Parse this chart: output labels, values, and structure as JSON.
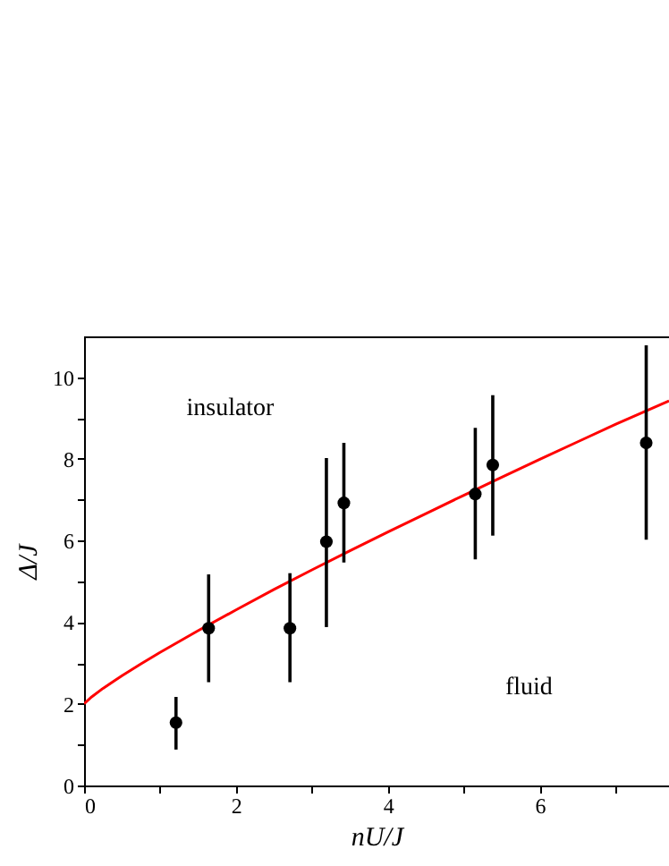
{
  "chart_data": {
    "type": "scatter",
    "xlabel": "nU/J",
    "ylabel": "Δ/J",
    "xlim": [
      0,
      7.7
    ],
    "ylim": [
      0,
      11
    ],
    "xticks": [
      0,
      {
        "value": 1,
        "label": null
      },
      2,
      {
        "value": 3,
        "label": null
      },
      4,
      {
        "value": 5,
        "label": null
      },
      6,
      {
        "value": 7,
        "label": null
      }
    ],
    "yticks": [
      0,
      {
        "value": 1,
        "label": null
      },
      2,
      {
        "value": 3,
        "label": null
      },
      4,
      {
        "value": 5,
        "label": null
      },
      6,
      {
        "value": 7,
        "label": null
      },
      8,
      {
        "value": 9,
        "label": null
      },
      10
    ],
    "annotations": [
      "insulator",
      "fluid"
    ],
    "series": [
      {
        "type": "line",
        "color": "#ff0000",
        "marker": "none",
        "x": [
          0,
          0.1,
          0.25,
          0.5,
          0.75,
          1,
          1.5,
          2,
          2.5,
          3,
          3.5,
          4,
          4.5,
          5,
          5.5,
          6,
          6.5,
          7,
          7.7
        ],
        "values": [
          2,
          2.17,
          2.38,
          2.69,
          2.98,
          3.26,
          3.79,
          4.3,
          4.8,
          5.28,
          5.75,
          6.21,
          6.66,
          7.11,
          7.55,
          7.99,
          8.42,
          8.85,
          9.42
        ]
      },
      {
        "color": "#000000",
        "marker": "circle",
        "x": [
          1.21,
          1.64,
          2.71,
          3.19,
          3.42,
          5.15,
          5.38,
          7.4
        ],
        "values": [
          1.54,
          3.85,
          3.85,
          5.97,
          6.92,
          7.14,
          7.85,
          8.39
        ],
        "errors": [
          [
            0.88,
            2.17
          ],
          [
            2.53,
            5.17
          ],
          [
            2.53,
            5.2
          ],
          [
            3.88,
            8.02
          ],
          [
            5.46,
            8.39
          ],
          [
            5.54,
            8.76
          ],
          [
            6.12,
            9.56
          ],
          [
            6.02,
            10.78
          ]
        ]
      }
    ]
  }
}
